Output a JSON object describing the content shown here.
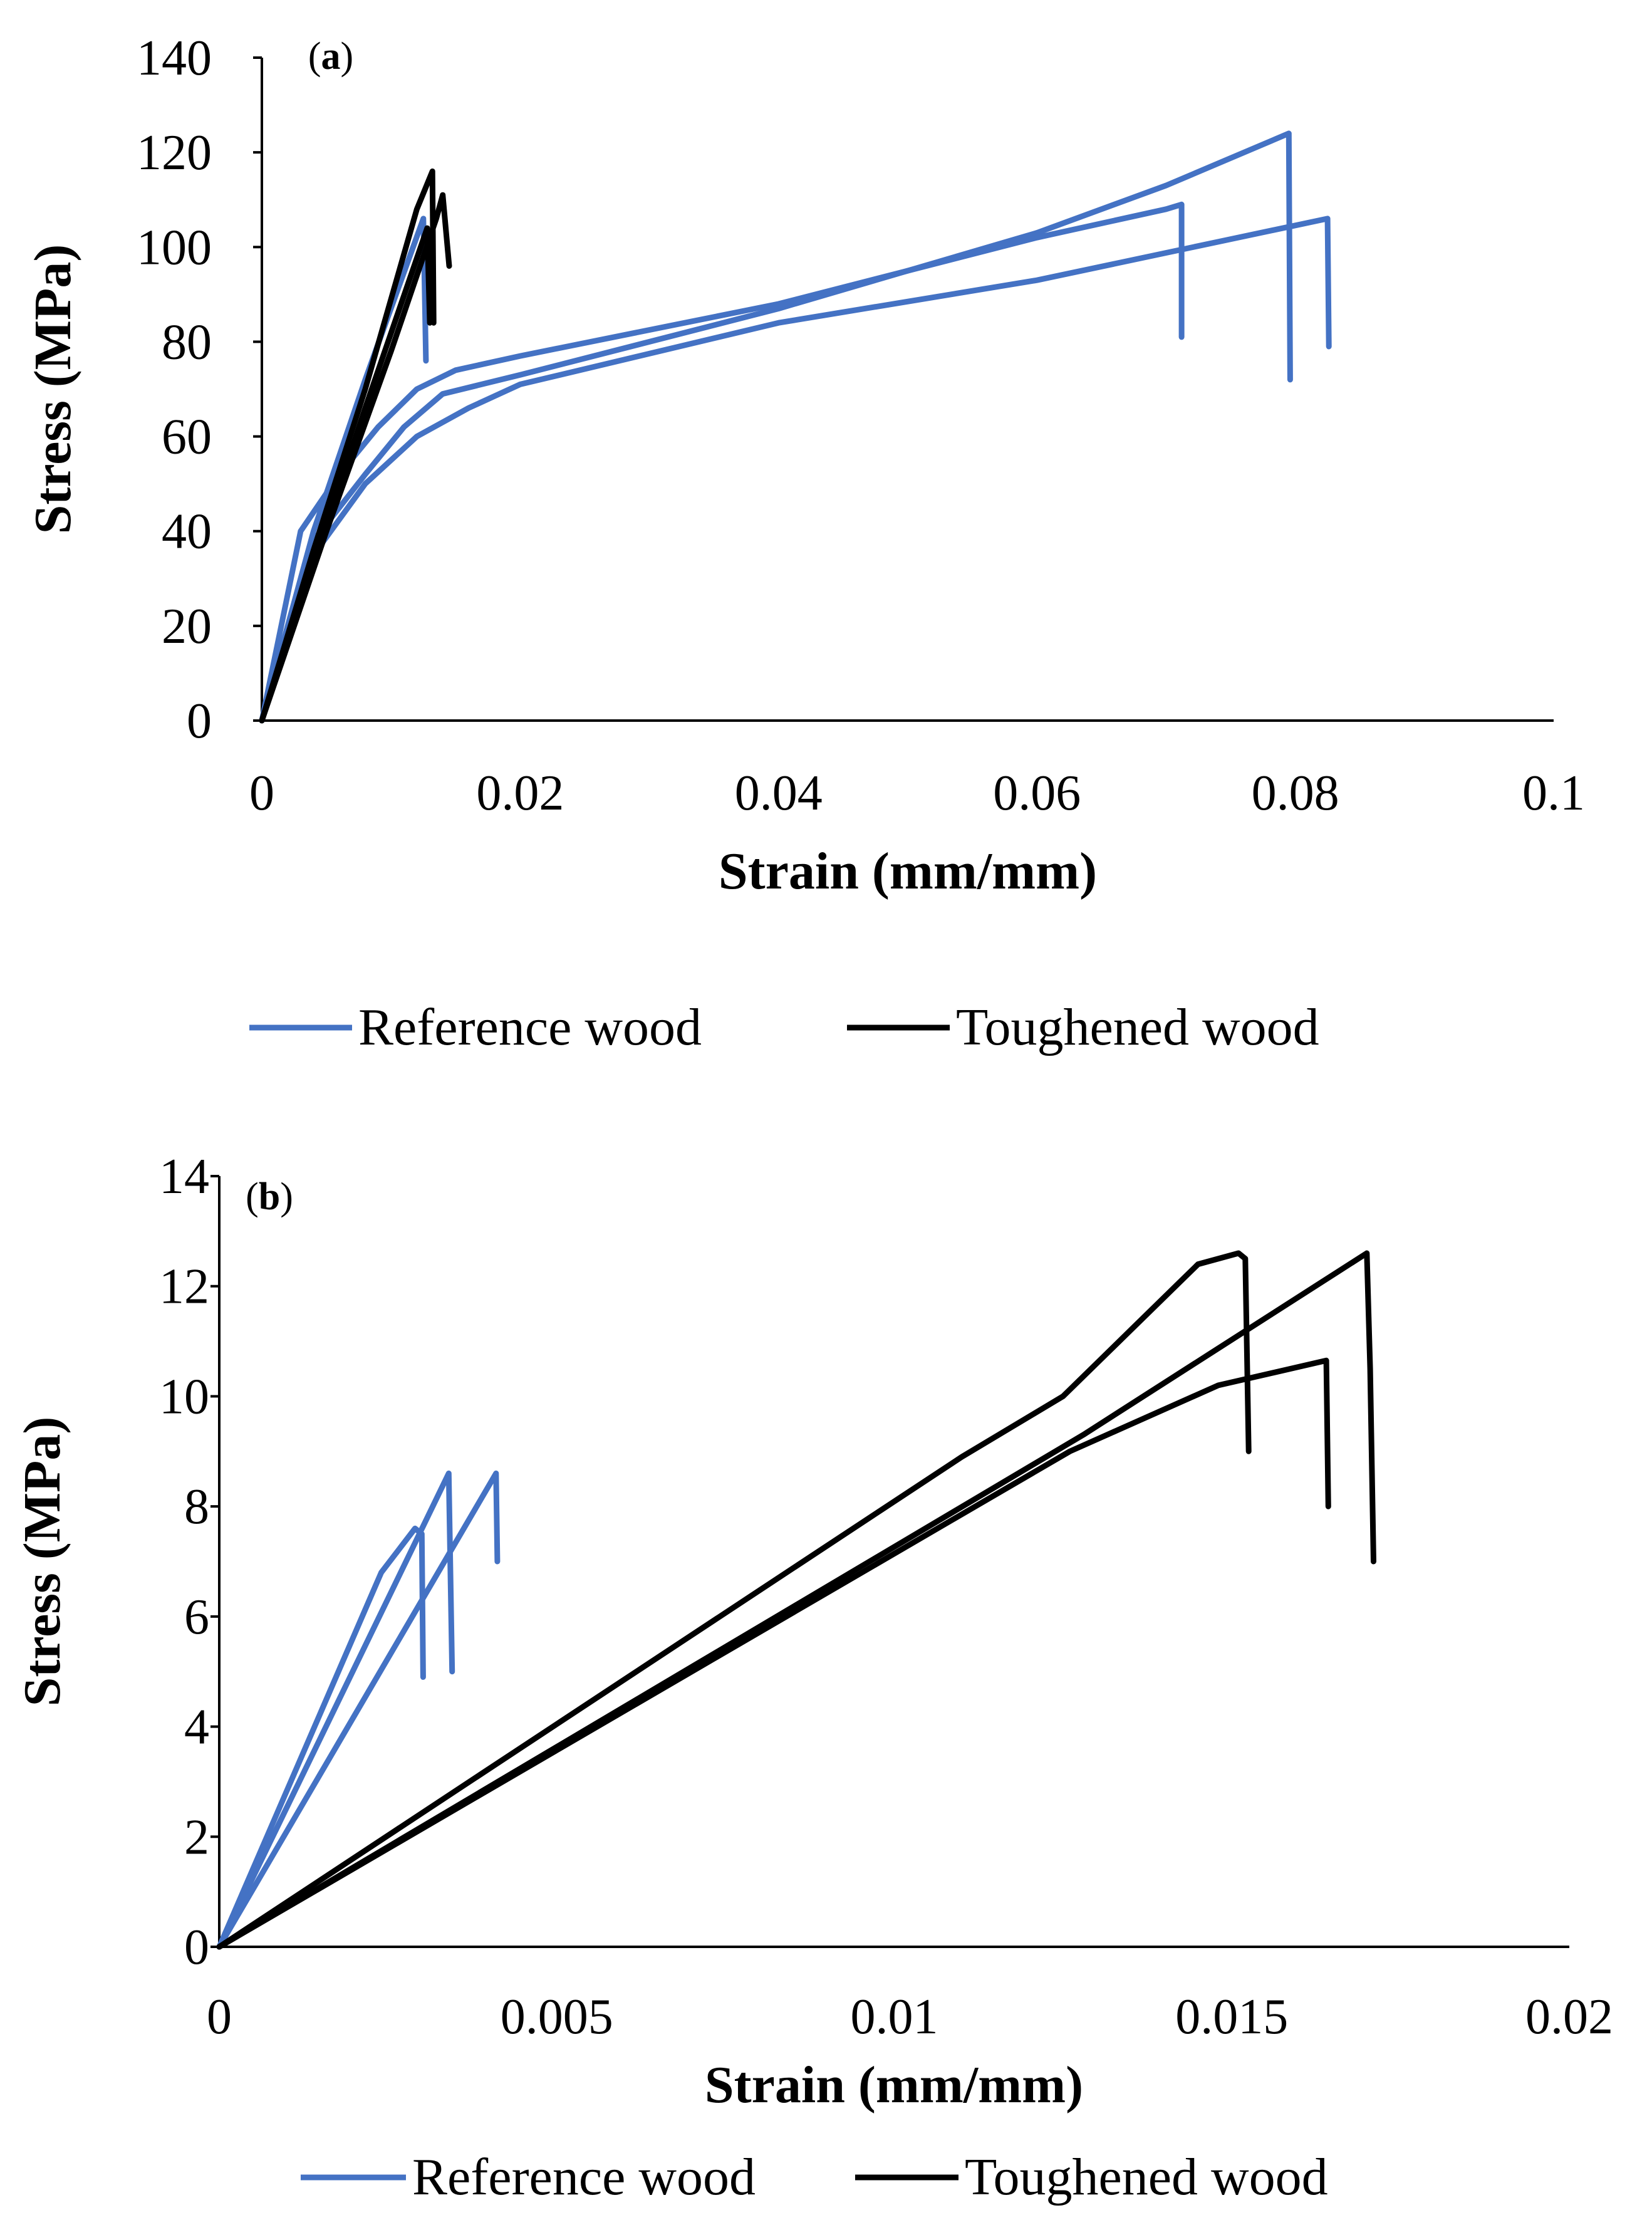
{
  "chart_data": [
    {
      "type": "line",
      "panel_label": "(a)",
      "xlabel": "Strain (mm/mm)",
      "ylabel": "Stress (MPa)",
      "xlim": [
        0,
        0.1
      ],
      "ylim": [
        0,
        140
      ],
      "x_ticks": [
        "0",
        "0.02",
        "0.04",
        "0.06",
        "0.08",
        "0.1"
      ],
      "y_ticks": [
        "0",
        "20",
        "40",
        "60",
        "80",
        "100",
        "120",
        "140"
      ],
      "grid": false,
      "legend_position": "bottom",
      "legend": [
        {
          "name": "Reference wood",
          "color": "#4472C4"
        },
        {
          "name": "Toughened wood",
          "color": "#000000"
        }
      ],
      "series": [
        {
          "name": "Reference wood",
          "color": "#4472C4",
          "points": [
            [
              0,
              0
            ],
            [
              0.003,
              40
            ],
            [
              0.006,
              52
            ],
            [
              0.009,
              62
            ],
            [
              0.012,
              70
            ],
            [
              0.015,
              74
            ],
            [
              0.02,
              77
            ],
            [
              0.04,
              88
            ],
            [
              0.06,
              102
            ],
            [
              0.07,
              108
            ],
            [
              0.0712,
              109
            ],
            [
              0.0712,
              81
            ]
          ]
        },
        {
          "name": "Reference wood",
          "color": "#4472C4",
          "points": [
            [
              0,
              0
            ],
            [
              0.004,
              38
            ],
            [
              0.008,
              52
            ],
            [
              0.011,
              62
            ],
            [
              0.014,
              69
            ],
            [
              0.02,
              73
            ],
            [
              0.04,
              87
            ],
            [
              0.06,
              103
            ],
            [
              0.07,
              113
            ],
            [
              0.0795,
              124
            ],
            [
              0.0796,
              72
            ]
          ]
        },
        {
          "name": "Reference wood",
          "color": "#4472C4",
          "points": [
            [
              0,
              0
            ],
            [
              0.004,
              35
            ],
            [
              0.008,
              50
            ],
            [
              0.012,
              60
            ],
            [
              0.016,
              66
            ],
            [
              0.02,
              71
            ],
            [
              0.04,
              84
            ],
            [
              0.06,
              93
            ],
            [
              0.0825,
              106
            ],
            [
              0.0826,
              79
            ]
          ]
        },
        {
          "name": "Reference wood",
          "color": "#4472C4",
          "points": [
            [
              0,
              0
            ],
            [
              0.004,
              40
            ],
            [
              0.008,
              72
            ],
            [
              0.0125,
              106
            ],
            [
              0.0127,
              76
            ]
          ]
        },
        {
          "name": "Toughened wood",
          "color": "#000000",
          "points": [
            [
              0,
              0
            ],
            [
              0.004,
              36
            ],
            [
              0.008,
              70
            ],
            [
              0.012,
              108
            ],
            [
              0.0132,
              116
            ],
            [
              0.0133,
              84
            ]
          ]
        },
        {
          "name": "Toughened wood",
          "color": "#000000",
          "points": [
            [
              0,
              0
            ],
            [
              0.005,
              40
            ],
            [
              0.01,
              78
            ],
            [
              0.0135,
              106
            ],
            [
              0.014,
              111
            ],
            [
              0.0145,
              96
            ]
          ]
        },
        {
          "name": "Toughened wood",
          "color": "#000000",
          "points": [
            [
              0,
              0
            ],
            [
              0.004,
              33
            ],
            [
              0.008,
              66
            ],
            [
              0.0128,
              104
            ],
            [
              0.013,
              84
            ]
          ]
        }
      ]
    },
    {
      "type": "line",
      "panel_label": "(b)",
      "xlabel": "Strain (mm/mm)",
      "ylabel": "Stress (MPa)",
      "xlim": [
        0,
        0.02
      ],
      "ylim": [
        0,
        14
      ],
      "x_ticks": [
        "0",
        "0.005",
        "0.01",
        "0.015",
        "0.02"
      ],
      "y_ticks": [
        "0",
        "2",
        "4",
        "6",
        "8",
        "10",
        "12",
        "14"
      ],
      "grid": false,
      "legend_position": "bottom",
      "legend": [
        {
          "name": "Reference wood",
          "color": "#4472C4"
        },
        {
          "name": "Toughened wood",
          "color": "#000000"
        }
      ],
      "series": [
        {
          "name": "Reference wood",
          "color": "#4472C4",
          "points": [
            [
              0,
              0
            ],
            [
              0.0024,
              6.8
            ],
            [
              0.0029,
              7.6
            ],
            [
              0.003,
              7.5
            ],
            [
              0.00302,
              4.9
            ]
          ]
        },
        {
          "name": "Reference wood",
          "color": "#4472C4",
          "points": [
            [
              0,
              0
            ],
            [
              0.0034,
              8.6
            ],
            [
              0.00345,
              5.0
            ]
          ]
        },
        {
          "name": "Reference wood",
          "color": "#4472C4",
          "points": [
            [
              0,
              0
            ],
            [
              0.0041,
              8.6
            ],
            [
              0.00412,
              7.0
            ]
          ]
        },
        {
          "name": "Toughened wood",
          "color": "#000000",
          "points": [
            [
              0,
              0
            ],
            [
              0.011,
              8.9
            ],
            [
              0.0125,
              10.0
            ],
            [
              0.0135,
              11.2
            ],
            [
              0.0145,
              12.4
            ],
            [
              0.0151,
              12.6
            ],
            [
              0.0152,
              12.5
            ],
            [
              0.01525,
              9.0
            ]
          ]
        },
        {
          "name": "Toughened wood",
          "color": "#000000",
          "points": [
            [
              0,
              0
            ],
            [
              0.0126,
              9.0
            ],
            [
              0.0148,
              10.2
            ],
            [
              0.0164,
              10.65
            ],
            [
              0.01643,
              8.0
            ]
          ]
        },
        {
          "name": "Toughened wood",
          "color": "#000000",
          "points": [
            [
              0,
              0
            ],
            [
              0.0128,
              9.3
            ],
            [
              0.017,
              12.6
            ],
            [
              0.01705,
              10.5
            ],
            [
              0.0171,
              7.0
            ]
          ]
        }
      ]
    }
  ]
}
